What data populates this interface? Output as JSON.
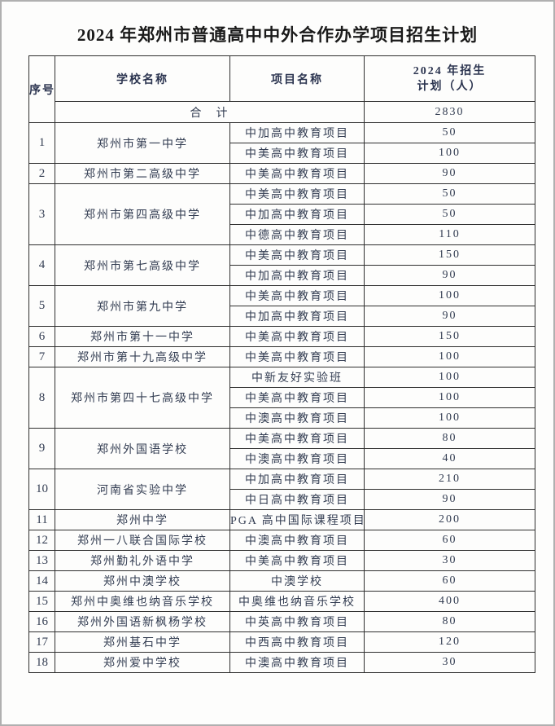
{
  "page": {
    "title": "2024 年郑州市普通高中中外合作办学项目招生计划"
  },
  "table": {
    "header": {
      "index": "序号",
      "school": "学校名称",
      "project": "项目名称",
      "plan_line1": "2024 年招生",
      "plan_line2": "计划（人）"
    },
    "total": {
      "label": "合　计",
      "value": "2830"
    },
    "rows": [
      {
        "index": "1",
        "school": "郑州市第一中学",
        "projects": [
          {
            "name": "中加高中教育项目",
            "plan": "50"
          },
          {
            "name": "中美高中教育项目",
            "plan": "100"
          }
        ]
      },
      {
        "index": "2",
        "school": "郑州市第二高级中学",
        "projects": [
          {
            "name": "中美高中教育项目",
            "plan": "90"
          }
        ]
      },
      {
        "index": "3",
        "school": "郑州市第四高级中学",
        "projects": [
          {
            "name": "中美高中教育项目",
            "plan": "50"
          },
          {
            "name": "中加高中教育项目",
            "plan": "50"
          },
          {
            "name": "中德高中教育项目",
            "plan": "110"
          }
        ]
      },
      {
        "index": "4",
        "school": "郑州市第七高级中学",
        "projects": [
          {
            "name": "中美高中教育项目",
            "plan": "150"
          },
          {
            "name": "中加高中教育项目",
            "plan": "90"
          }
        ]
      },
      {
        "index": "5",
        "school": "郑州市第九中学",
        "projects": [
          {
            "name": "中美高中教育项目",
            "plan": "100"
          },
          {
            "name": "中加高中教育项目",
            "plan": "90"
          }
        ]
      },
      {
        "index": "6",
        "school": "郑州市第十一中学",
        "projects": [
          {
            "name": "中美高中教育项目",
            "plan": "150"
          }
        ]
      },
      {
        "index": "7",
        "school": "郑州市第十九高级中学",
        "projects": [
          {
            "name": "中美高中教育项目",
            "plan": "100"
          }
        ]
      },
      {
        "index": "8",
        "school": "郑州市第四十七高级中学",
        "projects": [
          {
            "name": "中新友好实验班",
            "plan": "100"
          },
          {
            "name": "中美高中教育项目",
            "plan": "100"
          },
          {
            "name": "中澳高中教育项目",
            "plan": "100"
          }
        ]
      },
      {
        "index": "9",
        "school": "郑州外国语学校",
        "projects": [
          {
            "name": "中美高中教育项目",
            "plan": "80"
          },
          {
            "name": "中澳高中教育项目",
            "plan": "40"
          }
        ]
      },
      {
        "index": "10",
        "school": "河南省实验中学",
        "projects": [
          {
            "name": "中加高中教育项目",
            "plan": "210"
          },
          {
            "name": "中日高中教育项目",
            "plan": "90"
          }
        ]
      },
      {
        "index": "11",
        "school": "郑州中学",
        "projects": [
          {
            "name": "PGA 高中国际课程项目",
            "plan": "200"
          }
        ]
      },
      {
        "index": "12",
        "school": "郑州一八联合国际学校",
        "projects": [
          {
            "name": "中澳高中教育项目",
            "plan": "60"
          }
        ]
      },
      {
        "index": "13",
        "school": "郑州勤礼外语中学",
        "projects": [
          {
            "name": "中美高中教育项目",
            "plan": "30"
          }
        ]
      },
      {
        "index": "14",
        "school": "郑州中澳学校",
        "projects": [
          {
            "name": "中澳学校",
            "plan": "60"
          }
        ]
      },
      {
        "index": "15",
        "school": "郑州中奥维也纳音乐学校",
        "projects": [
          {
            "name": "中奥维也纳音乐学校",
            "plan": "400"
          }
        ]
      },
      {
        "index": "16",
        "school": "郑州外国语新枫杨学校",
        "projects": [
          {
            "name": "中英高中教育项目",
            "plan": "80"
          }
        ]
      },
      {
        "index": "17",
        "school": "郑州基石中学",
        "projects": [
          {
            "name": "中西高中教育项目",
            "plan": "120"
          }
        ]
      },
      {
        "index": "18",
        "school": "郑州爱中学校",
        "projects": [
          {
            "name": "中澳高中教育项目",
            "plan": "30"
          }
        ]
      }
    ]
  },
  "colors": {
    "text": "#333d52",
    "title": "#1a1a1a",
    "border": "#2f2f2f",
    "frame": "#b0b0b0",
    "bg": "#fdfdfc"
  }
}
